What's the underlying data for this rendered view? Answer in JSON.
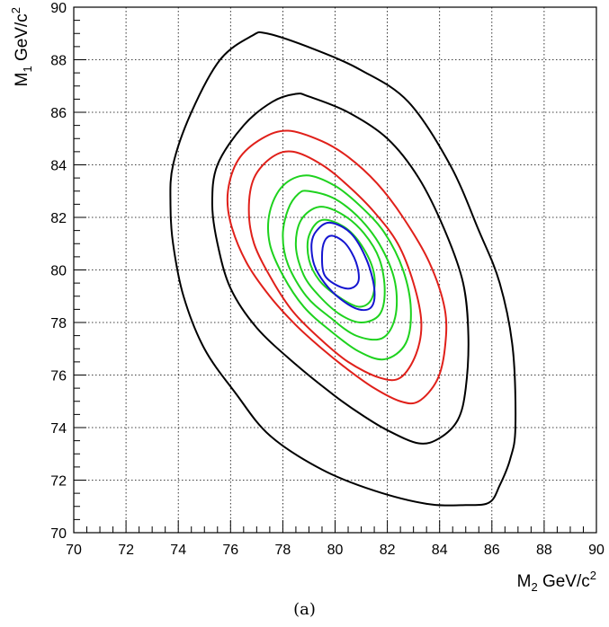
{
  "chart_data": {
    "type": "contour",
    "title": "",
    "xlabel": {
      "main": "M",
      "sub": "2",
      "unit": " GeV/c",
      "sup": "2"
    },
    "ylabel": {
      "main": "M",
      "sub": "1",
      "unit": " GeV/c",
      "sup": "2"
    },
    "xlim": [
      70,
      90
    ],
    "ylim": [
      70,
      90
    ],
    "major_ticks": [
      70,
      72,
      74,
      76,
      78,
      80,
      82,
      84,
      86,
      88,
      90
    ],
    "minor_tick_step": 0.5,
    "grid": true,
    "caption": "(a)",
    "contours": [
      {
        "color": "#000000",
        "width": 2.2,
        "points": [
          [
            77.4,
            89.0
          ],
          [
            79.2,
            88.4
          ],
          [
            81.0,
            87.6
          ],
          [
            82.8,
            86.4
          ],
          [
            84.4,
            84.0
          ],
          [
            85.5,
            81.5
          ],
          [
            86.3,
            79.5
          ],
          [
            86.8,
            77.0
          ],
          [
            86.9,
            74.0
          ],
          [
            86.7,
            72.8
          ],
          [
            86.3,
            71.8
          ],
          [
            85.9,
            71.15
          ],
          [
            85.0,
            71.05
          ],
          [
            83.5,
            71.1
          ],
          [
            81.5,
            71.6
          ],
          [
            79.5,
            72.4
          ],
          [
            77.5,
            73.7
          ],
          [
            76.2,
            75.3
          ],
          [
            75.0,
            77.0
          ],
          [
            74.2,
            79.0
          ],
          [
            73.8,
            81.0
          ],
          [
            73.7,
            82.5
          ],
          [
            73.8,
            84.0
          ],
          [
            74.5,
            86.0
          ],
          [
            75.6,
            88.0
          ],
          [
            76.8,
            88.9
          ],
          [
            77.4,
            89.0
          ]
        ]
      },
      {
        "color": "#000000",
        "width": 2.2,
        "points": [
          [
            79.0,
            86.6
          ],
          [
            80.5,
            86.0
          ],
          [
            82.0,
            85.0
          ],
          [
            83.2,
            83.5
          ],
          [
            84.2,
            81.5
          ],
          [
            84.9,
            79.5
          ],
          [
            85.1,
            77.5
          ],
          [
            85.0,
            75.5
          ],
          [
            84.7,
            74.3
          ],
          [
            84.0,
            73.6
          ],
          [
            83.2,
            73.4
          ],
          [
            82.0,
            73.9
          ],
          [
            81.0,
            74.5
          ],
          [
            80.0,
            75.2
          ],
          [
            78.5,
            76.4
          ],
          [
            77.0,
            77.8
          ],
          [
            76.0,
            79.3
          ],
          [
            75.5,
            81.0
          ],
          [
            75.3,
            82.5
          ],
          [
            75.5,
            84.0
          ],
          [
            76.5,
            85.5
          ],
          [
            77.6,
            86.4
          ],
          [
            78.5,
            86.7
          ],
          [
            79.0,
            86.6
          ]
        ]
      },
      {
        "color": "#e0201a",
        "width": 1.8,
        "points": [
          [
            78.2,
            85.3
          ],
          [
            79.5,
            84.9
          ],
          [
            80.5,
            84.3
          ],
          [
            81.6,
            83.3
          ],
          [
            82.6,
            82.0
          ],
          [
            83.6,
            80.3
          ],
          [
            84.2,
            78.5
          ],
          [
            84.2,
            77.0
          ],
          [
            83.9,
            75.8
          ],
          [
            83.2,
            75.0
          ],
          [
            82.5,
            75.0
          ],
          [
            81.5,
            75.5
          ],
          [
            80.5,
            76.2
          ],
          [
            79.5,
            77.0
          ],
          [
            78.5,
            77.9
          ],
          [
            77.5,
            79.0
          ],
          [
            76.6,
            80.3
          ],
          [
            76.0,
            81.8
          ],
          [
            75.9,
            83.0
          ],
          [
            76.3,
            84.2
          ],
          [
            77.2,
            85.0
          ],
          [
            78.2,
            85.3
          ]
        ]
      },
      {
        "color": "#e0201a",
        "width": 1.8,
        "points": [
          [
            78.4,
            84.5
          ],
          [
            79.5,
            84.0
          ],
          [
            80.5,
            83.2
          ],
          [
            81.5,
            82.2
          ],
          [
            82.4,
            81.0
          ],
          [
            83.0,
            79.5
          ],
          [
            83.3,
            78.0
          ],
          [
            83.1,
            76.8
          ],
          [
            82.5,
            75.9
          ],
          [
            81.7,
            75.9
          ],
          [
            80.5,
            76.5
          ],
          [
            79.4,
            77.4
          ],
          [
            78.4,
            78.4
          ],
          [
            77.6,
            79.6
          ],
          [
            76.9,
            81.0
          ],
          [
            76.7,
            82.3
          ],
          [
            76.9,
            83.5
          ],
          [
            77.6,
            84.3
          ],
          [
            78.4,
            84.5
          ]
        ]
      },
      {
        "color": "#1ed21e",
        "width": 1.8,
        "points": [
          [
            78.9,
            83.6
          ],
          [
            80.0,
            83.2
          ],
          [
            81.0,
            82.4
          ],
          [
            81.9,
            81.4
          ],
          [
            82.6,
            80.0
          ],
          [
            82.9,
            78.5
          ],
          [
            82.7,
            77.2
          ],
          [
            81.9,
            76.6
          ],
          [
            80.9,
            76.9
          ],
          [
            79.8,
            77.7
          ],
          [
            78.8,
            78.6
          ],
          [
            78.0,
            79.8
          ],
          [
            77.5,
            81.0
          ],
          [
            77.5,
            82.2
          ],
          [
            78.0,
            83.2
          ],
          [
            78.9,
            83.6
          ]
        ]
      },
      {
        "color": "#1ed21e",
        "width": 1.8,
        "points": [
          [
            79.0,
            83.0
          ],
          [
            80.0,
            82.7
          ],
          [
            81.0,
            81.9
          ],
          [
            81.8,
            80.8
          ],
          [
            82.3,
            79.5
          ],
          [
            82.3,
            78.2
          ],
          [
            81.8,
            77.4
          ],
          [
            80.8,
            77.5
          ],
          [
            79.8,
            78.2
          ],
          [
            78.9,
            79.0
          ],
          [
            78.2,
            80.2
          ],
          [
            78.0,
            81.3
          ],
          [
            78.2,
            82.3
          ],
          [
            78.6,
            82.9
          ],
          [
            79.0,
            83.0
          ]
        ]
      },
      {
        "color": "#1ed21e",
        "width": 1.8,
        "points": [
          [
            79.4,
            82.4
          ],
          [
            80.3,
            82.1
          ],
          [
            81.1,
            81.4
          ],
          [
            81.7,
            80.4
          ],
          [
            81.9,
            79.2
          ],
          [
            81.7,
            78.3
          ],
          [
            81.0,
            78.0
          ],
          [
            80.2,
            78.3
          ],
          [
            79.4,
            79.0
          ],
          [
            78.8,
            79.8
          ],
          [
            78.5,
            80.9
          ],
          [
            78.7,
            81.9
          ],
          [
            79.4,
            82.4
          ]
        ]
      },
      {
        "color": "#1ed21e",
        "width": 1.8,
        "points": [
          [
            79.5,
            81.9
          ],
          [
            80.4,
            81.6
          ],
          [
            81.1,
            80.8
          ],
          [
            81.5,
            79.8
          ],
          [
            81.4,
            78.9
          ],
          [
            80.9,
            78.6
          ],
          [
            80.1,
            79.0
          ],
          [
            79.4,
            79.6
          ],
          [
            79.0,
            80.4
          ],
          [
            79.0,
            81.3
          ],
          [
            79.5,
            81.9
          ]
        ]
      },
      {
        "color": "#1515d0",
        "width": 1.8,
        "points": [
          [
            79.8,
            81.8
          ],
          [
            80.6,
            81.4
          ],
          [
            81.2,
            80.4
          ],
          [
            81.5,
            79.3
          ],
          [
            81.4,
            78.6
          ],
          [
            80.9,
            78.5
          ],
          [
            80.2,
            78.9
          ],
          [
            79.6,
            79.5
          ],
          [
            79.2,
            80.2
          ],
          [
            79.1,
            81.0
          ],
          [
            79.3,
            81.5
          ],
          [
            79.8,
            81.8
          ]
        ]
      },
      {
        "color": "#1515d0",
        "width": 1.8,
        "points": [
          [
            79.9,
            81.3
          ],
          [
            80.4,
            81.0
          ],
          [
            80.8,
            80.3
          ],
          [
            80.9,
            79.6
          ],
          [
            80.6,
            79.3
          ],
          [
            80.1,
            79.4
          ],
          [
            79.6,
            79.8
          ],
          [
            79.5,
            80.5
          ],
          [
            79.6,
            81.1
          ],
          [
            79.9,
            81.3
          ]
        ]
      }
    ]
  }
}
